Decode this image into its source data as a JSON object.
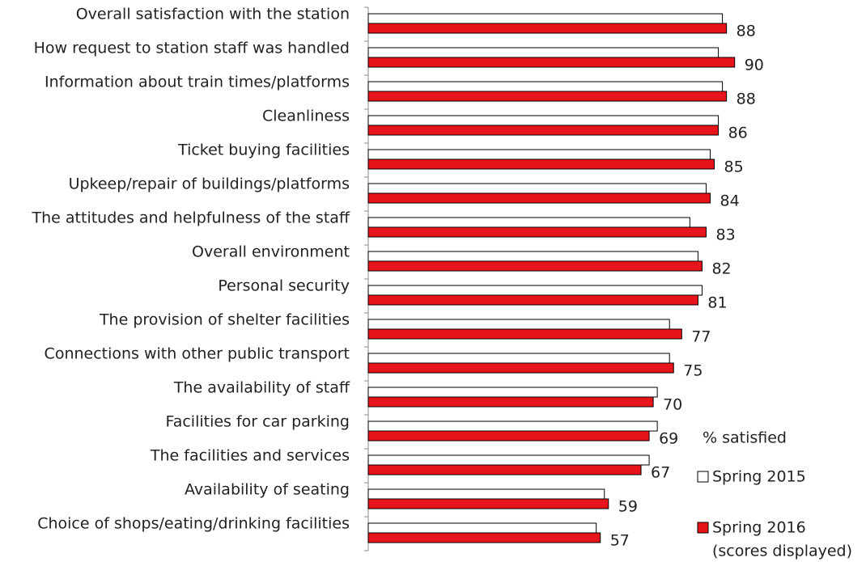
{
  "chart_data": {
    "type": "bar",
    "orientation": "horizontal",
    "categories": [
      "Overall satisfaction with the station",
      "How request to station staff was handled",
      "Information about train times/platforms",
      "Cleanliness",
      "Ticket buying facilities",
      "Upkeep/repair of buildings/platforms",
      "The attitudes and helpfulness of the staff",
      "Overall environment",
      "Personal security",
      "The provision of shelter facilities",
      "Connections with other public transport",
      "The availability of staff",
      "Facilities for car parking",
      "The facilities and services",
      "Availability of seating",
      "Choice of shops/eating/drinking facilities"
    ],
    "series": [
      {
        "name": "Spring 2015",
        "color": "#ffffff",
        "values": [
          87,
          86,
          87,
          86,
          84,
          83,
          79,
          81,
          82,
          74,
          74,
          71,
          71,
          69,
          58,
          56
        ]
      },
      {
        "name": "Spring 2016",
        "color": "#e8141c",
        "values": [
          88,
          90,
          88,
          86,
          85,
          84,
          83,
          82,
          81,
          77,
          75,
          70,
          69,
          67,
          59,
          57
        ]
      }
    ],
    "legend_title": "% satisfied",
    "legend_note": "(scores displayed)",
    "xlim": [
      0,
      100
    ]
  }
}
